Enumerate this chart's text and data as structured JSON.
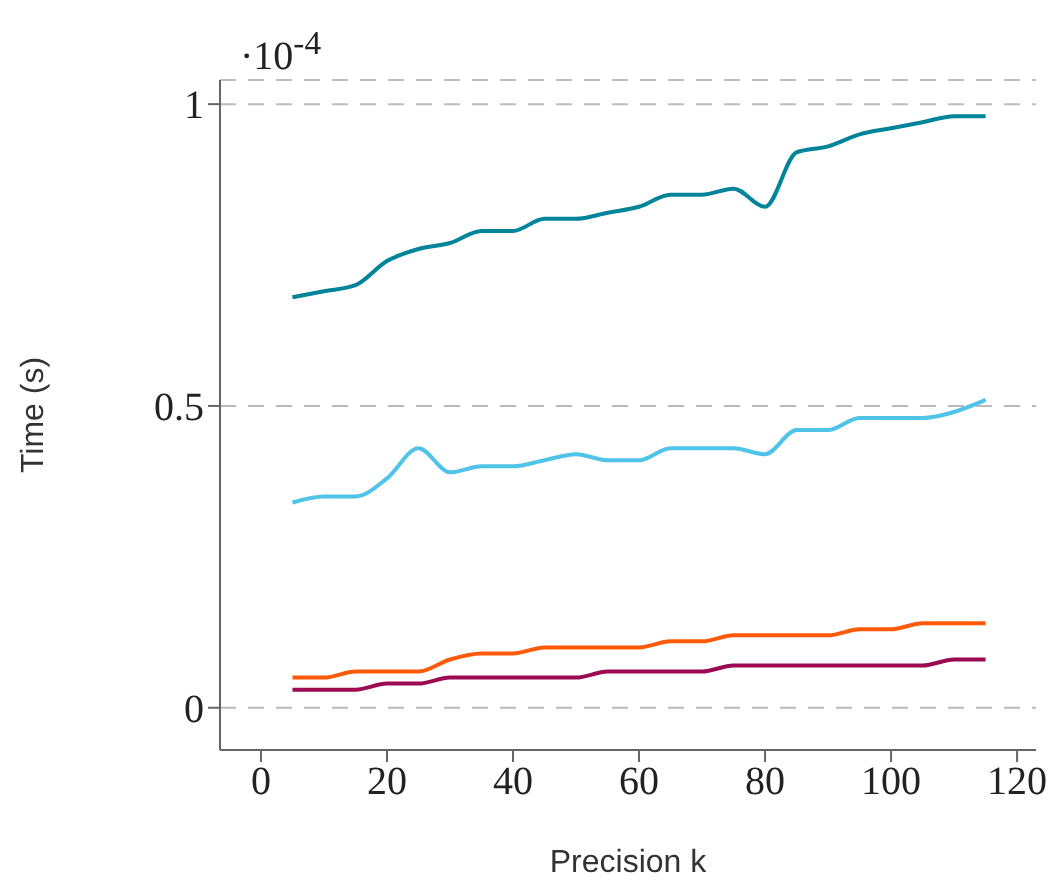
{
  "chart_data": {
    "type": "line",
    "xlabel": "Precision k",
    "ylabel": "Time (s)",
    "annotations": [
      "·10$^{-4}$"
    ],
    "x": [
      5,
      10,
      15,
      20,
      25,
      30,
      35,
      40,
      45,
      50,
      55,
      60,
      65,
      70,
      75,
      80,
      85,
      90,
      95,
      100,
      105,
      110,
      115
    ],
    "series": [
      {
        "color": "#00849a",
        "values": [
          0.68,
          0.69,
          0.7,
          0.74,
          0.76,
          0.77,
          0.79,
          0.79,
          0.81,
          0.81,
          0.82,
          0.83,
          0.85,
          0.85,
          0.86,
          0.83,
          0.92,
          0.93,
          0.95,
          0.96,
          0.97,
          0.98,
          0.98
        ]
      },
      {
        "color": "#4fc3e8",
        "values": [
          0.34,
          0.35,
          0.35,
          0.38,
          0.43,
          0.39,
          0.4,
          0.4,
          0.41,
          0.42,
          0.41,
          0.41,
          0.43,
          0.43,
          0.43,
          0.42,
          0.46,
          0.46,
          0.48,
          0.48,
          0.48,
          0.49,
          0.51
        ]
      },
      {
        "color": "#ff5a0a",
        "values": [
          0.05,
          0.05,
          0.06,
          0.06,
          0.06,
          0.08,
          0.09,
          0.09,
          0.1,
          0.1,
          0.1,
          0.1,
          0.11,
          0.11,
          0.12,
          0.12,
          0.12,
          0.12,
          0.13,
          0.13,
          0.14,
          0.14,
          0.14
        ]
      },
      {
        "color": "#9c0a52",
        "values": [
          0.03,
          0.03,
          0.03,
          0.04,
          0.04,
          0.05,
          0.05,
          0.05,
          0.05,
          0.05,
          0.06,
          0.06,
          0.06,
          0.06,
          0.07,
          0.07,
          0.07,
          0.07,
          0.07,
          0.07,
          0.07,
          0.08,
          0.08
        ]
      }
    ],
    "xlim": [
      -6.5,
      123
    ],
    "xticks": [
      0,
      20,
      40,
      60,
      80,
      100,
      120
    ],
    "ylim": [
      -0.07,
      1.04
    ],
    "yticks": [
      0,
      0.5,
      1
    ],
    "grid": "y",
    "legend": false,
    "marker": "none",
    "line_style": "solid"
  }
}
